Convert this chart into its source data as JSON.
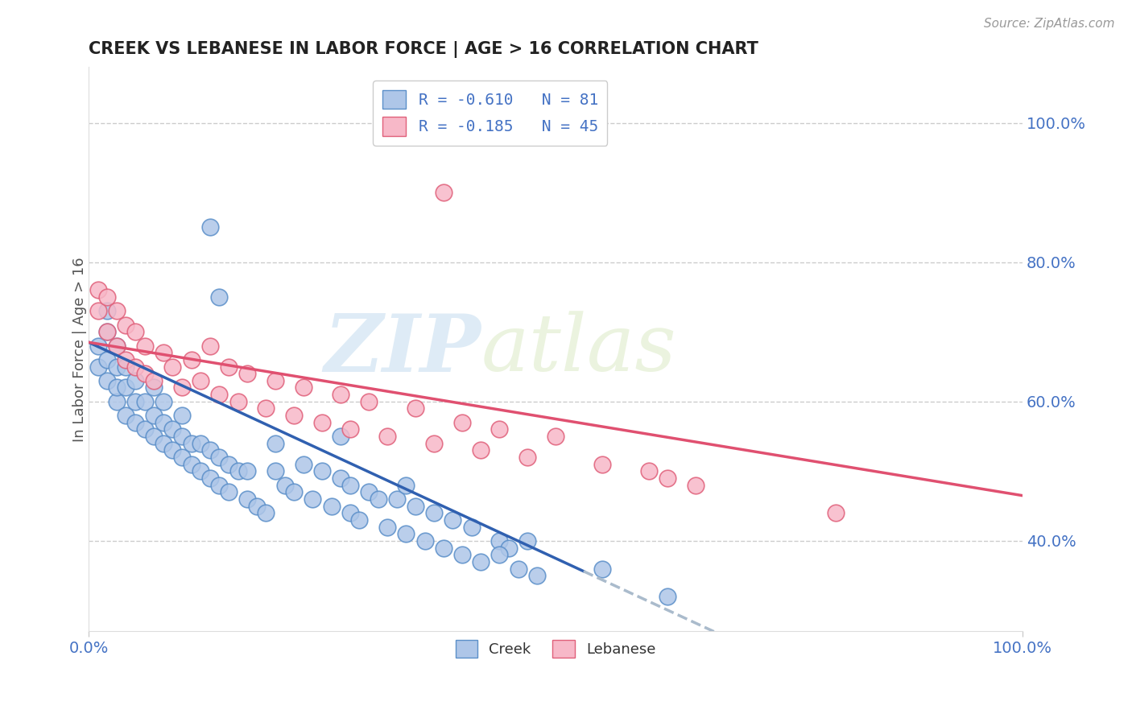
{
  "title": "CREEK VS LEBANESE IN LABOR FORCE | AGE > 16 CORRELATION CHART",
  "source_text": "Source: ZipAtlas.com",
  "ylabel": "In Labor Force | Age > 16",
  "xlim": [
    0.0,
    1.0
  ],
  "ylim": [
    0.27,
    1.08
  ],
  "ytick_values": [
    0.4,
    0.6,
    0.8,
    1.0
  ],
  "creek_color": "#aec6e8",
  "creek_edge": "#5b8fc9",
  "lebanese_color": "#f7b8c8",
  "lebanese_edge": "#e0607a",
  "trend_blue": "#3060b0",
  "trend_pink": "#e05070",
  "trend_dash_color": "#aabbcc",
  "creek_R": -0.61,
  "creek_N": 81,
  "lebanese_R": -0.185,
  "lebanese_N": 45,
  "watermark_zip": "ZIP",
  "watermark_atlas": "atlas",
  "creek_x": [
    0.01,
    0.01,
    0.02,
    0.02,
    0.02,
    0.02,
    0.03,
    0.03,
    0.03,
    0.03,
    0.04,
    0.04,
    0.04,
    0.05,
    0.05,
    0.05,
    0.06,
    0.06,
    0.07,
    0.07,
    0.07,
    0.08,
    0.08,
    0.08,
    0.09,
    0.09,
    0.1,
    0.1,
    0.1,
    0.11,
    0.11,
    0.12,
    0.12,
    0.13,
    0.13,
    0.14,
    0.14,
    0.15,
    0.15,
    0.16,
    0.17,
    0.17,
    0.18,
    0.19,
    0.2,
    0.2,
    0.21,
    0.22,
    0.23,
    0.24,
    0.25,
    0.26,
    0.27,
    0.28,
    0.28,
    0.29,
    0.3,
    0.31,
    0.32,
    0.33,
    0.34,
    0.35,
    0.36,
    0.37,
    0.38,
    0.39,
    0.4,
    0.41,
    0.42,
    0.44,
    0.45,
    0.46,
    0.47,
    0.48,
    0.13,
    0.14,
    0.27,
    0.34,
    0.44,
    0.55,
    0.62
  ],
  "creek_y": [
    0.65,
    0.68,
    0.63,
    0.66,
    0.7,
    0.73,
    0.6,
    0.62,
    0.65,
    0.68,
    0.58,
    0.62,
    0.65,
    0.57,
    0.6,
    0.63,
    0.56,
    0.6,
    0.55,
    0.58,
    0.62,
    0.54,
    0.57,
    0.6,
    0.53,
    0.56,
    0.52,
    0.55,
    0.58,
    0.51,
    0.54,
    0.5,
    0.54,
    0.49,
    0.53,
    0.48,
    0.52,
    0.47,
    0.51,
    0.5,
    0.46,
    0.5,
    0.45,
    0.44,
    0.5,
    0.54,
    0.48,
    0.47,
    0.51,
    0.46,
    0.5,
    0.45,
    0.49,
    0.44,
    0.48,
    0.43,
    0.47,
    0.46,
    0.42,
    0.46,
    0.41,
    0.45,
    0.4,
    0.44,
    0.39,
    0.43,
    0.38,
    0.42,
    0.37,
    0.4,
    0.39,
    0.36,
    0.4,
    0.35,
    0.85,
    0.75,
    0.55,
    0.48,
    0.38,
    0.36,
    0.32
  ],
  "lebanese_x": [
    0.01,
    0.01,
    0.02,
    0.02,
    0.03,
    0.03,
    0.04,
    0.04,
    0.05,
    0.05,
    0.06,
    0.06,
    0.07,
    0.08,
    0.09,
    0.1,
    0.11,
    0.12,
    0.13,
    0.14,
    0.15,
    0.16,
    0.17,
    0.19,
    0.2,
    0.22,
    0.23,
    0.25,
    0.27,
    0.28,
    0.3,
    0.32,
    0.35,
    0.37,
    0.4,
    0.42,
    0.44,
    0.47,
    0.5,
    0.55,
    0.6,
    0.62,
    0.65,
    0.8,
    0.38
  ],
  "lebanese_y": [
    0.73,
    0.76,
    0.7,
    0.75,
    0.68,
    0.73,
    0.66,
    0.71,
    0.65,
    0.7,
    0.64,
    0.68,
    0.63,
    0.67,
    0.65,
    0.62,
    0.66,
    0.63,
    0.68,
    0.61,
    0.65,
    0.6,
    0.64,
    0.59,
    0.63,
    0.58,
    0.62,
    0.57,
    0.61,
    0.56,
    0.6,
    0.55,
    0.59,
    0.54,
    0.57,
    0.53,
    0.56,
    0.52,
    0.55,
    0.51,
    0.5,
    0.49,
    0.48,
    0.44,
    0.9
  ],
  "creek_trend_x0": 0.0,
  "creek_trend_x1": 0.53,
  "creek_trend_dash_x1": 0.7,
  "creek_trend_y_at_0": 0.685,
  "creek_trend_slope": -0.62,
  "lebanese_trend_y_at_0": 0.685,
  "lebanese_trend_slope": -0.22
}
